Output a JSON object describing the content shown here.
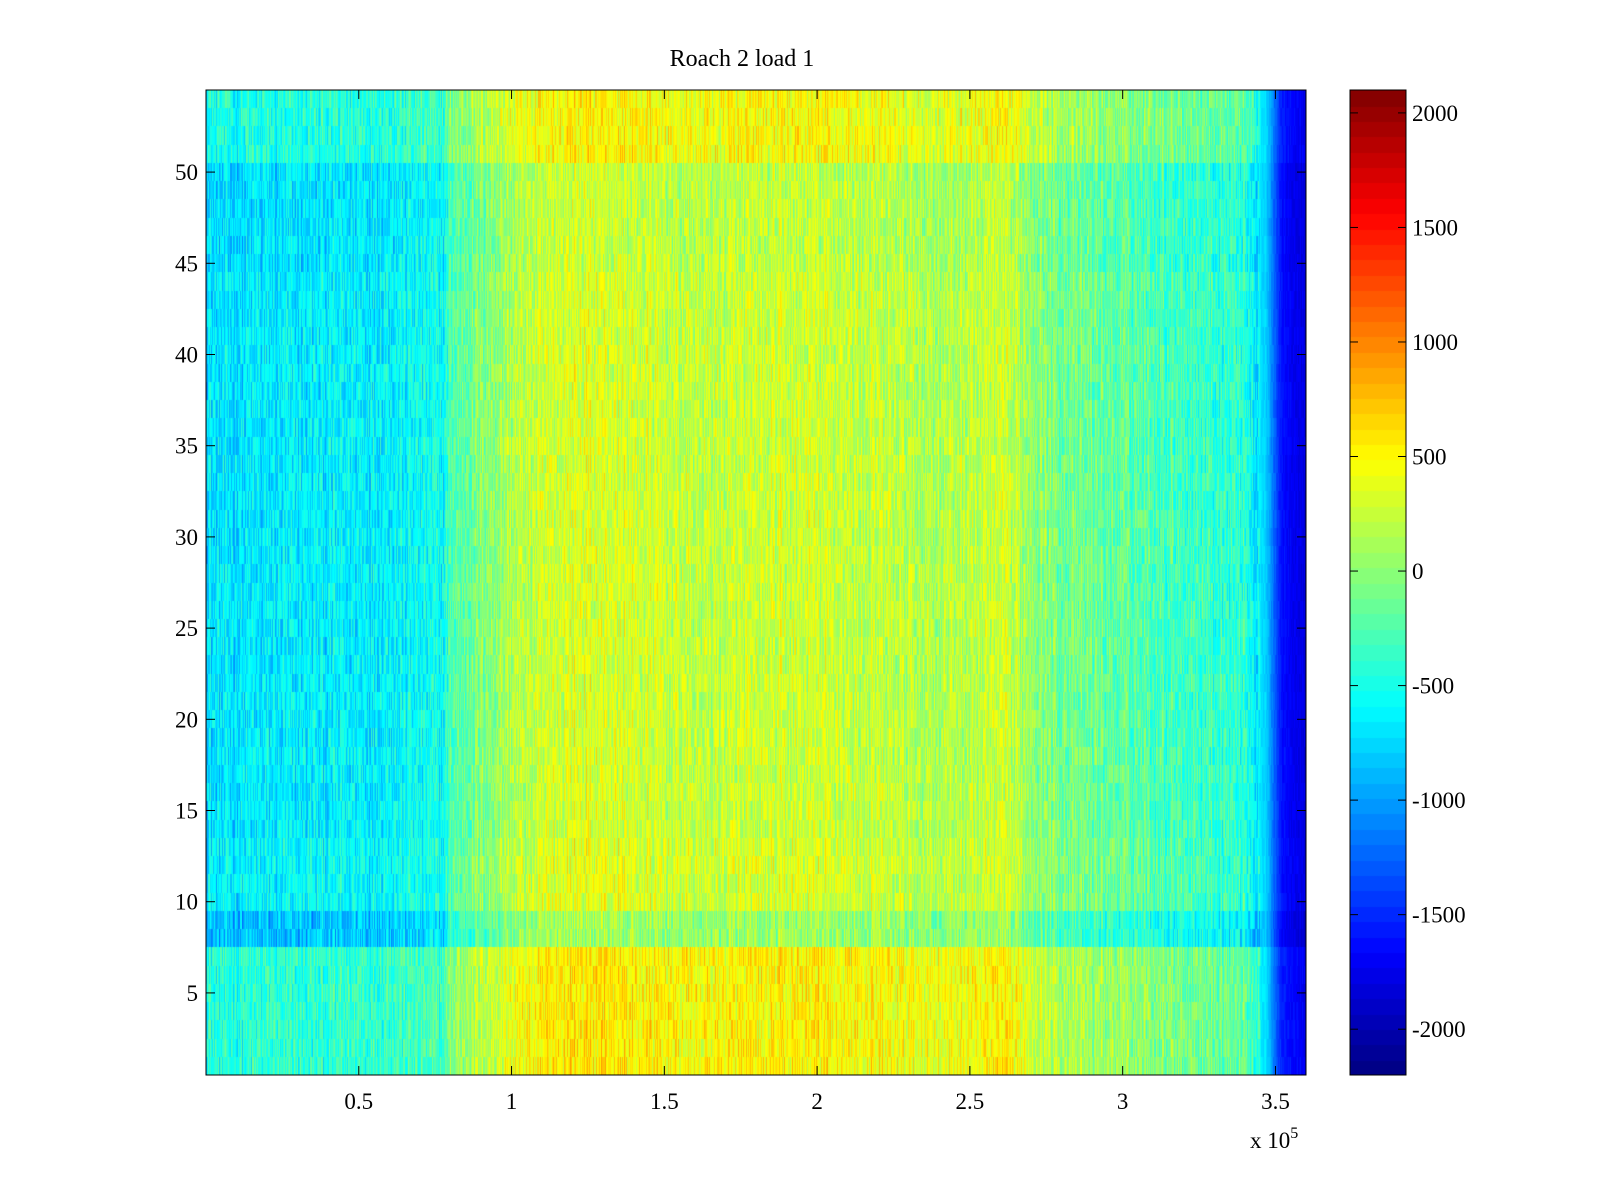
{
  "chart_data": {
    "type": "heatmap",
    "title": "Roach 2 load 1",
    "xlabel": "",
    "ylabel": "",
    "x_multiplier_label": "x 10",
    "x_multiplier_exponent": "5",
    "xlim": [
      0,
      360000
    ],
    "ylim": [
      0.5,
      54.5
    ],
    "x_ticks": [
      {
        "value": 50000,
        "label": "0.5"
      },
      {
        "value": 100000,
        "label": "1"
      },
      {
        "value": 150000,
        "label": "1.5"
      },
      {
        "value": 200000,
        "label": "2"
      },
      {
        "value": 250000,
        "label": "2.5"
      },
      {
        "value": 300000,
        "label": "3"
      },
      {
        "value": 350000,
        "label": "3.5"
      }
    ],
    "y_ticks": [
      {
        "value": 5,
        "label": "5"
      },
      {
        "value": 10,
        "label": "10"
      },
      {
        "value": 15,
        "label": "15"
      },
      {
        "value": 20,
        "label": "20"
      },
      {
        "value": 25,
        "label": "25"
      },
      {
        "value": 30,
        "label": "30"
      },
      {
        "value": 35,
        "label": "35"
      },
      {
        "value": 40,
        "label": "40"
      },
      {
        "value": 45,
        "label": "45"
      },
      {
        "value": 50,
        "label": "50"
      }
    ],
    "colormap": "jet",
    "color_range": [
      -2200,
      2100
    ],
    "colorbar_ticks": [
      {
        "value": 2000,
        "label": "2000"
      },
      {
        "value": 1500,
        "label": "1500"
      },
      {
        "value": 1000,
        "label": "1000"
      },
      {
        "value": 500,
        "label": "500"
      },
      {
        "value": 0,
        "label": "0"
      },
      {
        "value": -500,
        "label": "-500"
      },
      {
        "value": -1000,
        "label": "-1000"
      },
      {
        "value": -1500,
        "label": "-1500"
      },
      {
        "value": -2000,
        "label": "-2000"
      }
    ],
    "rows": 54,
    "column_profile": [
      {
        "x": 0,
        "value": -700
      },
      {
        "x": 40000,
        "value": -650
      },
      {
        "x": 78000,
        "value": -550
      },
      {
        "x": 80000,
        "value": -250
      },
      {
        "x": 100000,
        "value": 150
      },
      {
        "x": 120000,
        "value": 350
      },
      {
        "x": 140000,
        "value": 300
      },
      {
        "x": 160000,
        "value": 220
      },
      {
        "x": 200000,
        "value": 280
      },
      {
        "x": 240000,
        "value": 150
      },
      {
        "x": 260000,
        "value": 250
      },
      {
        "x": 280000,
        "value": -100
      },
      {
        "x": 310000,
        "value": -250
      },
      {
        "x": 340000,
        "value": -400
      },
      {
        "x": 347000,
        "value": -800
      },
      {
        "x": 352000,
        "value": -1600
      },
      {
        "x": 360000,
        "value": -1800
      }
    ],
    "row_offsets": [
      {
        "rows": [
          1,
          7
        ],
        "offset": 250
      },
      {
        "rows": [
          8,
          9
        ],
        "offset": -200
      },
      {
        "rows": [
          10,
          13
        ],
        "offset": 50
      },
      {
        "rows": [
          14,
          44
        ],
        "offset": 0
      },
      {
        "rows": [
          45,
          50
        ],
        "offset": -50
      },
      {
        "rows": [
          51,
          54
        ],
        "offset": 200
      }
    ],
    "noise_amplitude": 320
  }
}
